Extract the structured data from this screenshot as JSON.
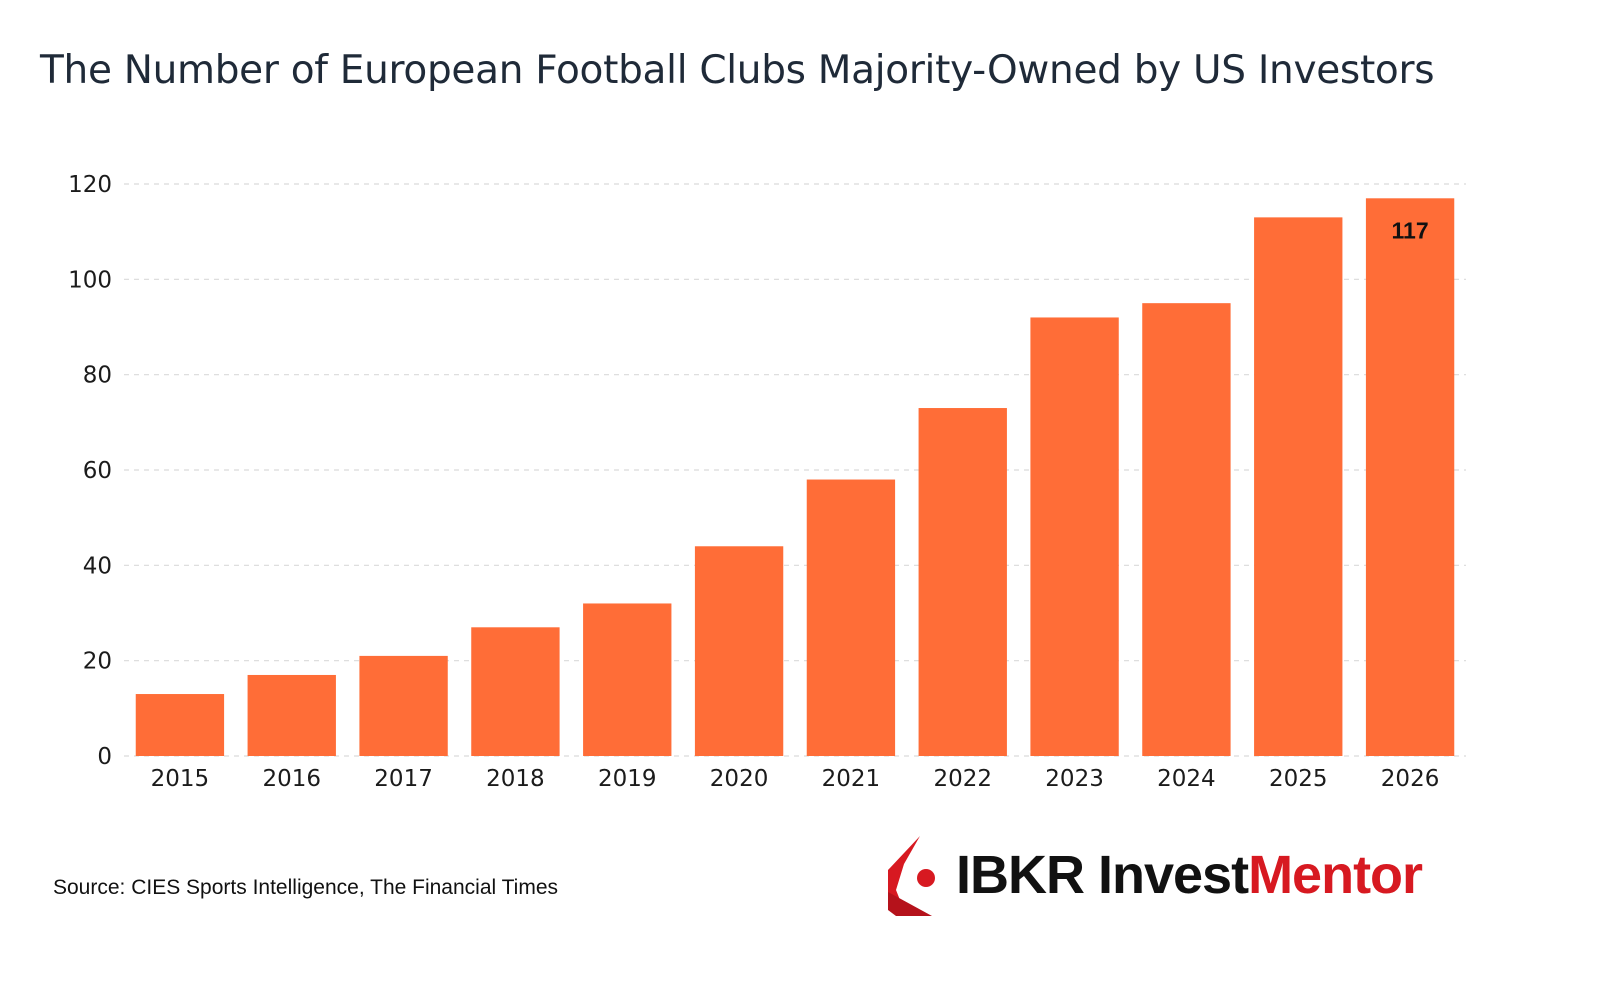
{
  "title": "The Number of European Football Clubs Majority-Owned by US Investors",
  "source": "Source: CIES Sports Intelligence, The Financial Times",
  "logo": {
    "part1": "IBKR Invest",
    "part2": "Mentor"
  },
  "colors": {
    "bar": "#ff6d37",
    "grid": "#d9d9d9",
    "title": "#1f2a38",
    "logo_red": "#d71921"
  },
  "chart_data": {
    "type": "bar",
    "title": "The Number of European Football Clubs Majority-Owned by US Investors",
    "categories": [
      "2015",
      "2016",
      "2017",
      "2018",
      "2019",
      "2020",
      "2021",
      "2022",
      "2023",
      "2024",
      "2025",
      "2026"
    ],
    "values": [
      13,
      17,
      21,
      27,
      32,
      44,
      58,
      73,
      92,
      95,
      113,
      117
    ],
    "data_labels": [
      null,
      null,
      null,
      null,
      null,
      null,
      null,
      null,
      null,
      null,
      null,
      "117"
    ],
    "xlabel": "",
    "ylabel": "",
    "ylim": [
      0,
      120
    ],
    "yticks": [
      0,
      20,
      40,
      60,
      80,
      100,
      120
    ],
    "grid": true,
    "legend": "none"
  }
}
